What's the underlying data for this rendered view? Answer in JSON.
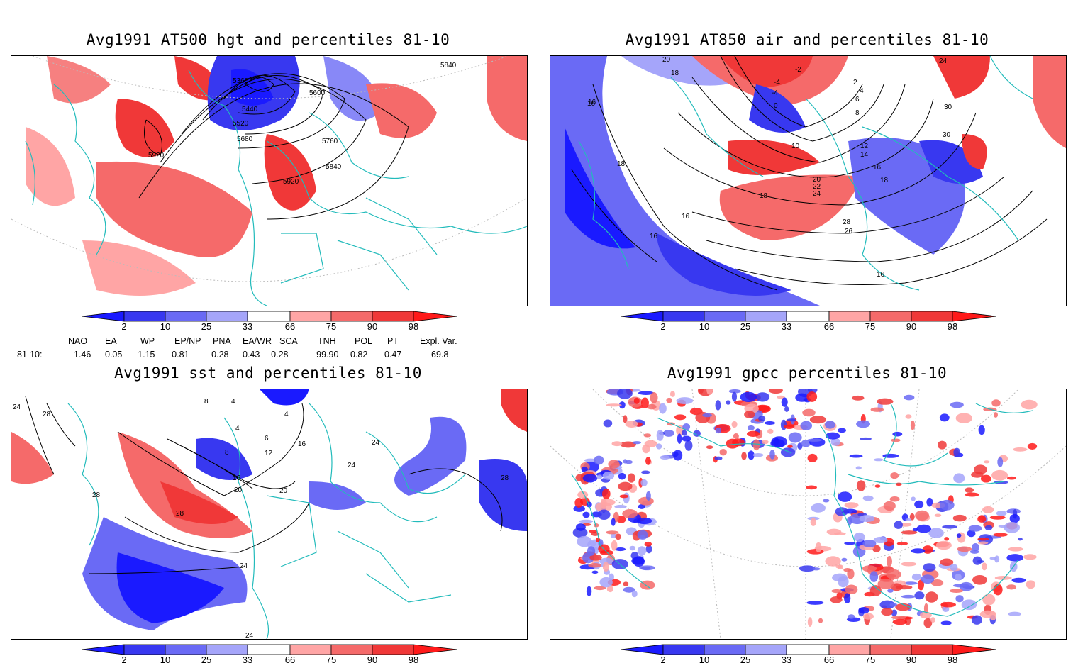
{
  "panels": [
    {
      "title": "Avg1991 AT500 hgt and percentiles 81-10",
      "contour_labels": [
        "5360",
        "5440",
        "5520",
        "5600",
        "5680",
        "5760",
        "5840",
        "5920",
        "5920",
        "5840"
      ]
    },
    {
      "title": "Avg1991 AT850 air and percentiles 81-10",
      "contour_labels": [
        "20",
        "18",
        "-2",
        "-4",
        "-4",
        "0",
        "2",
        "4",
        "6",
        "8",
        "10",
        "12",
        "14",
        "16",
        "16",
        "18",
        "18",
        "18",
        "20",
        "22",
        "24",
        "26",
        "28",
        "30",
        "30",
        "24",
        "16",
        "16",
        "16",
        "16"
      ]
    },
    {
      "title": "Avg1991 sst and percentiles 81-10",
      "contour_labels": [
        "24",
        "28",
        "8",
        "4",
        "4",
        "4",
        "6",
        "8",
        "12",
        "16",
        "16",
        "20",
        "20",
        "24",
        "24",
        "28",
        "28",
        "24",
        "24",
        "28"
      ]
    },
    {
      "title": "Avg1991 gpcc percentiles 81-10",
      "contour_labels": []
    }
  ],
  "colorbar": {
    "labels": [
      "2",
      "10",
      "25",
      "33",
      "66",
      "75",
      "90",
      "98"
    ],
    "colors": [
      "#1a1aff",
      "#3838f0",
      "#6a6af5",
      "#a5a5fa",
      "#ffffff",
      "#ffa5a5",
      "#f56a6a",
      "#f03838",
      "#ff1a1a"
    ]
  },
  "indices": {
    "headers": [
      "NAO",
      "EA",
      "WP",
      "EP/NP",
      "PNA",
      "EA/WR",
      "SCA",
      "TNH",
      "POL",
      "PT",
      "Expl. Var."
    ],
    "row_label": "81-10:",
    "values": [
      "1.46",
      "0.05",
      "-1.15",
      "-0.81",
      "-0.28",
      "0.43",
      "-0.28",
      "-99.90",
      "0.82",
      "0.47",
      "69.8"
    ]
  }
}
